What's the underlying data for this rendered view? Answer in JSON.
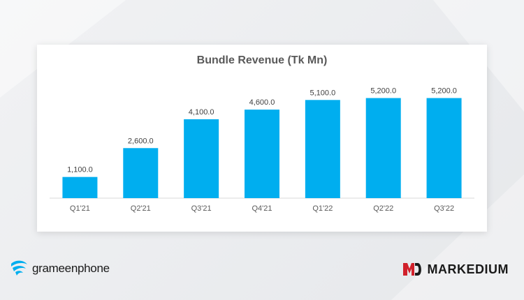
{
  "chart_data": {
    "type": "bar",
    "title": "Bundle Revenue (Tk Mn)",
    "categories": [
      "Q1'21",
      "Q2'21",
      "Q3'21",
      "Q4'21",
      "Q1'22",
      "Q2'22",
      "Q3'22"
    ],
    "values": [
      1100,
      2600,
      4100,
      4600,
      5100,
      5200,
      5200
    ],
    "value_labels": [
      "1,100.0",
      "2,600.0",
      "4,100.0",
      "4,600.0",
      "5,100.0",
      "5,200.0",
      "5,200.0"
    ],
    "ylim": [
      0,
      5800
    ],
    "grid": false,
    "legend": "none",
    "bar_color": "#00AEEF"
  },
  "branding": {
    "left_logo_text": "grameenphone",
    "right_logo_text": "MARKEDIUM",
    "left_logo_color": "#00AEEF",
    "right_logo_color": "#d0202a"
  }
}
